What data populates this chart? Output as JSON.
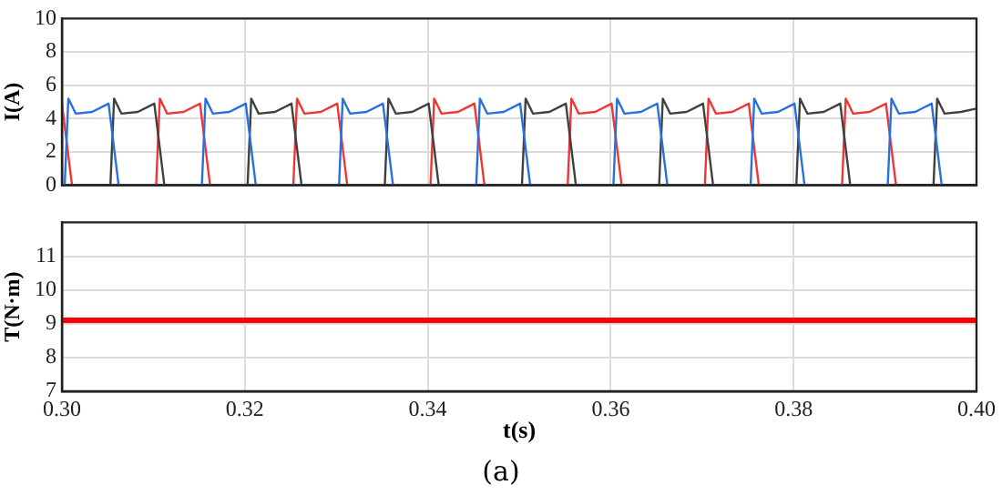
{
  "chart_data": [
    {
      "type": "line",
      "ylabel": "I(A)",
      "xlim": [
        0.3,
        0.4
      ],
      "xticks": [
        0.3,
        0.32,
        0.34,
        0.36,
        0.38,
        0.4
      ],
      "ylim": [
        0,
        10
      ],
      "yticks": [
        0,
        2,
        4,
        6,
        8,
        10
      ],
      "grid": true,
      "tick_labels": "y",
      "legend": false,
      "marker": "none",
      "line_style": "solid",
      "series": [
        {
          "color": "#2a6fe0",
          "x": [
            0.3,
            0.3003,
            0.3007,
            0.3015,
            0.3033,
            0.3051,
            0.3062,
            0.3153,
            0.3157,
            0.3165,
            0.3183,
            0.3201,
            0.3212,
            0.3303,
            0.3307,
            0.3315,
            0.3333,
            0.3351,
            0.3362,
            0.3453,
            0.3457,
            0.3465,
            0.3483,
            0.3501,
            0.3512,
            0.3603,
            0.3607,
            0.3615,
            0.3633,
            0.3651,
            0.3662,
            0.3753,
            0.3757,
            0.3765,
            0.3783,
            0.3801,
            0.3812,
            0.3903,
            0.3907,
            0.3915,
            0.3933,
            0.3951,
            0.3962
          ],
          "values": [
            0,
            0,
            5.2,
            4.3,
            4.4,
            4.9,
            0,
            0,
            5.2,
            4.3,
            4.4,
            4.9,
            0,
            0,
            5.2,
            4.3,
            4.4,
            4.9,
            0,
            0,
            5.2,
            4.3,
            4.4,
            4.9,
            0,
            0,
            5.2,
            4.3,
            4.4,
            4.9,
            0,
            0,
            5.2,
            4.3,
            4.4,
            4.9,
            0,
            0,
            5.2,
            4.3,
            4.4,
            4.9,
            0
          ]
        },
        {
          "color": "#404040",
          "x": [
            0.3,
            0.3053,
            0.3057,
            0.3065,
            0.3083,
            0.3101,
            0.3112,
            0.3203,
            0.3207,
            0.3215,
            0.3233,
            0.3251,
            0.3262,
            0.3353,
            0.3357,
            0.3365,
            0.3383,
            0.3401,
            0.3412,
            0.3503,
            0.3507,
            0.3515,
            0.3533,
            0.3551,
            0.3562,
            0.3653,
            0.3657,
            0.3665,
            0.3683,
            0.3701,
            0.3712,
            0.3803,
            0.3807,
            0.3815,
            0.3833,
            0.3851,
            0.3862,
            0.3953,
            0.3957,
            0.3965,
            0.3983,
            0.4
          ],
          "values": [
            0,
            0,
            5.2,
            4.3,
            4.4,
            4.9,
            0,
            0,
            5.2,
            4.3,
            4.4,
            4.9,
            0,
            0,
            5.2,
            4.3,
            4.4,
            4.9,
            0,
            0,
            5.2,
            4.3,
            4.4,
            4.9,
            0,
            0,
            5.2,
            4.3,
            4.4,
            4.9,
            0,
            0,
            5.2,
            4.3,
            4.4,
            4.9,
            0,
            0,
            5.2,
            4.3,
            4.4,
            4.6
          ]
        },
        {
          "color": "#f03535",
          "x": [
            0.3,
            0.3011,
            0.3103,
            0.3107,
            0.3115,
            0.3133,
            0.3151,
            0.3162,
            0.3253,
            0.3257,
            0.3265,
            0.3283,
            0.3301,
            0.3312,
            0.3403,
            0.3407,
            0.3415,
            0.3433,
            0.3451,
            0.3462,
            0.3553,
            0.3557,
            0.3565,
            0.3583,
            0.3601,
            0.3612,
            0.3703,
            0.3707,
            0.3715,
            0.3733,
            0.3751,
            0.3762,
            0.3853,
            0.3857,
            0.3865,
            0.3883,
            0.3901,
            0.3912
          ],
          "values": [
            4.9,
            0,
            0,
            5.2,
            4.3,
            4.4,
            4.9,
            0,
            0,
            5.2,
            4.3,
            4.4,
            4.9,
            0,
            0,
            5.2,
            4.3,
            4.4,
            4.9,
            0,
            0,
            5.2,
            4.3,
            4.4,
            4.9,
            0,
            0,
            5.2,
            4.3,
            4.4,
            4.9,
            0,
            0,
            5.2,
            4.3,
            4.4,
            4.9,
            0
          ]
        }
      ]
    },
    {
      "type": "line",
      "xlabel": "t(s)",
      "ylabel": "T(N·m)",
      "xlim": [
        0.3,
        0.4
      ],
      "xticks": [
        {
          "value": 0.3,
          "label": "0.30"
        },
        {
          "value": 0.32,
          "label": "0.32"
        },
        {
          "value": 0.34,
          "label": "0.34"
        },
        {
          "value": 0.36,
          "label": "0.36"
        },
        {
          "value": 0.38,
          "label": "0.38"
        },
        {
          "value": 0.4,
          "label": "0.40"
        }
      ],
      "ylim": [
        7,
        12
      ],
      "yticks": [
        7,
        8,
        9,
        10,
        11,
        {
          "value": 12,
          "label": null
        }
      ],
      "grid": true,
      "legend": false,
      "marker": "none",
      "line_style": "solid",
      "annotations": [
        "(a)"
      ],
      "series": [
        {
          "color": "#ff0000",
          "x": [
            0.3,
            0.3005,
            0.301,
            0.3055,
            0.306,
            0.3105,
            0.311,
            0.3155,
            0.316,
            0.3205,
            0.321,
            0.3255,
            0.326,
            0.3305,
            0.331,
            0.3355,
            0.336,
            0.3405,
            0.341,
            0.3455,
            0.346,
            0.3505,
            0.351,
            0.3555,
            0.356,
            0.3605,
            0.361,
            0.3655,
            0.366,
            0.3705,
            0.371,
            0.3755,
            0.376,
            0.3805,
            0.381,
            0.3855,
            0.386,
            0.3905,
            0.391,
            0.3955,
            0.396,
            0.4
          ],
          "values": [
            9.1,
            9.1,
            9.1,
            9.1,
            9.1,
            9.1,
            9.1,
            9.1,
            9.1,
            9.1,
            9.1,
            9.1,
            9.1,
            9.1,
            9.1,
            9.1,
            9.1,
            9.1,
            9.1,
            9.1,
            9.1,
            9.1,
            9.1,
            9.1,
            9.1,
            9.1,
            9.1,
            9.1,
            9.1,
            9.1,
            9.1,
            9.1,
            9.1,
            9.1,
            9.1,
            9.1,
            9.1,
            9.1,
            9.1,
            9.1,
            9.1,
            9.1
          ]
        }
      ]
    }
  ]
}
